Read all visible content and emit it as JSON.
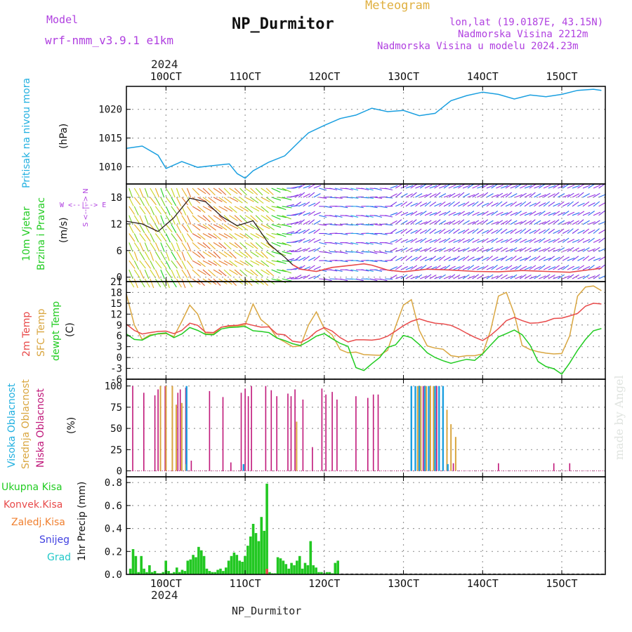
{
  "header": {
    "model_label": "Model",
    "model_value": "wrf-nmm_v3.9.1 e1km",
    "title": "NP_Durmitor",
    "subtitle": "Meteogram",
    "coords": "lon,lat (19.0187E, 43.15N)",
    "elevation": "Nadmorska Visina 2212m",
    "model_elevation": "Nadmorska Visina u modelu 2024.23m",
    "year_top": "2024",
    "year_bottom": "2024",
    "footer": "NP_Durmitor",
    "credit": "made by Angel"
  },
  "colors": {
    "pressure": "#1a9fe0",
    "temp2m": "#e84a4a",
    "sfc": "#d9a640",
    "dewpt": "#22cc22",
    "high_cloud": "#1a9fe0",
    "mid_cloud": "#d9a640",
    "low_cloud": "#c0187a",
    "precip": "#22c822",
    "wind_speed": "#e84a4a",
    "purple_text": "#b040e0",
    "cyan_text": "#22b0e0"
  },
  "chart_data": [
    {
      "type": "line",
      "name": "pressure",
      "ylabel_outer": "Pritisak na nivou mora",
      "ylabel_inner": "(hPa)",
      "yticks": [
        1010,
        1015,
        1020
      ],
      "ylim": [
        1007,
        1024
      ],
      "x_days": [
        9.5,
        9.7,
        9.9,
        10.0,
        10.2,
        10.4,
        10.6,
        10.8,
        10.9,
        11.0,
        11.1,
        11.3,
        11.5,
        11.7,
        11.8,
        12.0,
        12.2,
        12.4,
        12.6,
        12.8,
        13.0,
        13.2,
        13.4,
        13.6,
        13.8,
        14.0,
        14.2,
        14.4,
        14.6,
        14.8,
        15.0,
        15.2,
        15.4,
        15.5
      ],
      "values": [
        1013.2,
        1013.6,
        1012.0,
        1009.7,
        1010.9,
        1009.9,
        1010.2,
        1010.5,
        1008.8,
        1008.0,
        1009.3,
        1010.8,
        1011.9,
        1014.6,
        1015.9,
        1017.2,
        1018.4,
        1019.0,
        1020.2,
        1019.6,
        1019.8,
        1018.9,
        1019.3,
        1021.5,
        1022.4,
        1023.0,
        1022.6,
        1021.8,
        1022.5,
        1022.2,
        1022.6,
        1023.3,
        1023.5,
        1023.3
      ]
    },
    {
      "type": "line",
      "name": "wind",
      "ylabel_outer1": "10m Vjetar",
      "ylabel_outer2": "Brzina i Pravac",
      "ylabel_inner": "(m/s)",
      "compass": "W <--|--> E",
      "compass2": "S <--|--> N",
      "yticks": [
        0,
        6,
        12,
        18
      ],
      "ylim": [
        -1,
        21
      ],
      "x_days": [
        9.5,
        9.7,
        9.9,
        10.1,
        10.3,
        10.5,
        10.7,
        10.9,
        11.1,
        11.3,
        11.5,
        11.6,
        11.7,
        11.9,
        12.1,
        12.3,
        12.5,
        12.6,
        12.8,
        13.0,
        13.3,
        13.6,
        13.9,
        14.2,
        14.5,
        14.8,
        15.1,
        15.5
      ],
      "speed": [
        12.6,
        12.0,
        10.3,
        13.4,
        17.8,
        17.0,
        13.7,
        11.6,
        12.7,
        7.5,
        4.5,
        2.8,
        1.8,
        1.3,
        2.2,
        2.6,
        3.0,
        2.7,
        1.6,
        1.2,
        1.8,
        1.6,
        1.3,
        1.2,
        1.5,
        1.3,
        1.1,
        2.0
      ],
      "direction_bands": [
        "SW",
        "SW",
        "SW",
        "SW",
        "W",
        "W",
        "W",
        "W",
        "W",
        "NW",
        "N",
        "NE",
        "NE",
        "E",
        "E",
        "E",
        "E",
        "E",
        "NE",
        "NE",
        "NE",
        "NE",
        "NE",
        "NE",
        "NE",
        "NE",
        "NE",
        "NE"
      ]
    },
    {
      "type": "line",
      "name": "temperature",
      "ylabel_outer1": "2m Temp",
      "ylabel_outer2": "SFC Temp",
      "ylabel_outer3": "dewpt Temp",
      "ylabel_inner": "(C)",
      "yticks": [
        -6,
        -3,
        0,
        3,
        6,
        9,
        12,
        15,
        18,
        21
      ],
      "ylim": [
        -6,
        21
      ],
      "x_days": [
        9.5,
        9.6,
        9.7,
        9.8,
        9.9,
        10.0,
        10.1,
        10.2,
        10.3,
        10.4,
        10.5,
        10.6,
        10.7,
        10.8,
        10.9,
        11.0,
        11.1,
        11.2,
        11.3,
        11.4,
        11.5,
        11.6,
        11.7,
        11.8,
        11.9,
        12.0,
        12.1,
        12.2,
        12.3,
        12.4,
        12.5,
        12.6,
        12.7,
        12.8,
        12.9,
        13.0,
        13.1,
        13.2,
        13.3,
        13.4,
        13.5,
        13.6,
        13.7,
        13.8,
        13.9,
        14.0,
        14.1,
        14.2,
        14.3,
        14.4,
        14.5,
        14.6,
        14.7,
        14.8,
        14.9,
        15.0,
        15.1,
        15.2,
        15.3,
        15.4,
        15.5
      ],
      "t2m": [
        9.2,
        7.5,
        6.5,
        6.9,
        7.2,
        7.3,
        6.6,
        7.5,
        9.5,
        8.9,
        7.0,
        6.9,
        8.4,
        8.8,
        8.9,
        9.4,
        8.9,
        8.4,
        8.5,
        6.5,
        6.3,
        4.5,
        4.2,
        5.3,
        7.2,
        8.3,
        7.3,
        5.5,
        4.3,
        4.9,
        4.9,
        4.8,
        5.1,
        5.9,
        7.3,
        8.8,
        10.0,
        10.7,
        10.0,
        9.5,
        9.3,
        8.9,
        7.9,
        6.7,
        5.6,
        4.7,
        6.1,
        8.0,
        10.2,
        11.1,
        10.2,
        9.5,
        9.6,
        10.0,
        10.8,
        10.9,
        11.5,
        12.2,
        14.2,
        15.0,
        14.8
      ],
      "sfc": [
        17.5,
        9.0,
        5.0,
        6.3,
        6.5,
        6.6,
        5.8,
        10.0,
        14.5,
        12.0,
        6.6,
        6.5,
        8.4,
        8.6,
        8.7,
        9.0,
        14.8,
        10.5,
        8.7,
        5.5,
        4.3,
        3.0,
        3.2,
        9.0,
        12.6,
        8.0,
        6.2,
        2.2,
        1.3,
        1.5,
        0.8,
        0.7,
        0.6,
        2.0,
        8.6,
        14.5,
        16.0,
        7.5,
        3.2,
        2.6,
        2.3,
        0.5,
        0.2,
        0.5,
        0.5,
        1.0,
        7.4,
        17.0,
        18.0,
        12.0,
        3.3,
        2.2,
        1.6,
        1.2,
        1.0,
        1.1,
        6.0,
        17.0,
        19.5,
        19.8,
        18.5
      ],
      "dewpt": [
        6.5,
        5.0,
        4.8,
        6.0,
        6.6,
        6.8,
        5.5,
        6.5,
        8.3,
        7.5,
        6.4,
        6.3,
        7.9,
        8.3,
        8.4,
        8.6,
        7.4,
        7.2,
        6.9,
        5.4,
        4.7,
        3.8,
        3.3,
        4.5,
        5.9,
        6.6,
        5.2,
        3.9,
        3.1,
        -2.8,
        -3.6,
        -1.7,
        0.0,
        2.8,
        3.5,
        6.1,
        5.5,
        3.6,
        1.3,
        0.0,
        -0.9,
        -1.6,
        -1.0,
        -0.5,
        -0.8,
        1.0,
        3.4,
        5.7,
        6.6,
        7.6,
        6.3,
        3.4,
        -1.1,
        -2.5,
        -3.1,
        -4.6,
        -1.5,
        2.0,
        5.0,
        7.4,
        8.0
      ]
    },
    {
      "type": "bar",
      "name": "clouds",
      "ylabel_outer1": "Visoka Oblacnost",
      "ylabel_outer2": "Srednja Oblacnost",
      "ylabel_outer3": "Niska Oblacnost",
      "ylabel_inner": "(%)",
      "yticks": [
        0,
        25,
        50,
        75,
        100
      ],
      "ylim": [
        0,
        100
      ],
      "low": [
        [
          9.58,
          100
        ],
        [
          9.72,
          92
        ],
        [
          9.86,
          89
        ],
        [
          9.9,
          96
        ],
        [
          9.99,
          100
        ],
        [
          10.08,
          100
        ],
        [
          10.15,
          92
        ],
        [
          10.18,
          96
        ],
        [
          10.25,
          98
        ],
        [
          10.32,
          12
        ],
        [
          10.55,
          94
        ],
        [
          10.72,
          87
        ],
        [
          10.82,
          10
        ],
        [
          10.95,
          92
        ],
        [
          11.0,
          97
        ],
        [
          11.04,
          88
        ],
        [
          11.08,
          100
        ],
        [
          11.26,
          100
        ],
        [
          11.33,
          95
        ],
        [
          11.4,
          88
        ],
        [
          11.54,
          91
        ],
        [
          11.58,
          88
        ],
        [
          11.63,
          96
        ],
        [
          11.73,
          84
        ],
        [
          11.85,
          28
        ],
        [
          11.97,
          97
        ],
        [
          12.02,
          90
        ],
        [
          12.1,
          93
        ],
        [
          12.16,
          84
        ],
        [
          12.4,
          88
        ],
        [
          12.55,
          86
        ],
        [
          12.62,
          90
        ],
        [
          12.68,
          90
        ],
        [
          13.25,
          100
        ],
        [
          13.42,
          100
        ],
        [
          13.5,
          99
        ],
        [
          13.63,
          9
        ],
        [
          14.2,
          9
        ],
        [
          14.9,
          9
        ],
        [
          15.1,
          9
        ]
      ],
      "mid": [
        [
          9.93,
          100
        ],
        [
          10.0,
          100
        ],
        [
          10.08,
          100
        ],
        [
          10.13,
          78
        ],
        [
          10.2,
          80
        ],
        [
          10.25,
          8
        ],
        [
          11.65,
          58
        ],
        [
          13.1,
          100
        ],
        [
          13.18,
          100
        ],
        [
          13.22,
          100
        ],
        [
          13.29,
          100
        ],
        [
          13.34,
          100
        ],
        [
          13.38,
          100
        ],
        [
          13.45,
          85
        ],
        [
          13.5,
          90
        ],
        [
          13.55,
          72
        ],
        [
          13.6,
          55
        ],
        [
          13.66,
          40
        ]
      ],
      "high": [
        [
          10.26,
          100
        ],
        [
          10.98,
          8
        ],
        [
          13.1,
          100
        ],
        [
          13.15,
          100
        ],
        [
          13.2,
          100
        ],
        [
          13.27,
          100
        ],
        [
          13.32,
          100
        ],
        [
          13.4,
          100
        ],
        [
          13.45,
          100
        ],
        [
          13.5,
          100
        ],
        [
          13.56,
          8
        ]
      ]
    },
    {
      "type": "bar",
      "name": "precip",
      "legend": [
        "Ukupna Kisa",
        "Konvek.Kisa",
        "Zaledj.Kisa",
        "Snijeg",
        "Grad"
      ],
      "ylabel_inner": "1hr Precip (mm)",
      "yticks": [
        0.0,
        0.2,
        0.4,
        0.6,
        0.8
      ],
      "ylim": [
        0,
        0.85
      ],
      "x_start": 9.55,
      "x_step": 0.0345,
      "values": [
        0.05,
        0.22,
        0.16,
        0.02,
        0.16,
        0.05,
        0.02,
        0.08,
        0.02,
        0.03,
        0.01,
        0.01,
        0.02,
        0.12,
        0.03,
        0.01,
        0.02,
        0.06,
        0.02,
        0.04,
        0.03,
        0.12,
        0.13,
        0.17,
        0.15,
        0.24,
        0.21,
        0.16,
        0.05,
        0.03,
        0.02,
        0.02,
        0.04,
        0.05,
        0.03,
        0.06,
        0.12,
        0.16,
        0.19,
        0.17,
        0.12,
        0.11,
        0.16,
        0.25,
        0.33,
        0.44,
        0.36,
        0.29,
        0.5,
        0.38,
        0.79,
        0.02,
        0.01,
        0.01,
        0.15,
        0.14,
        0.12,
        0.09,
        0.05,
        0.1,
        0.08,
        0.12,
        0.16,
        0.05,
        0.1,
        0.08,
        0.29,
        0.08,
        0.06,
        0.02,
        0.02,
        0.01,
        0.02,
        0.02,
        0.01,
        0.1,
        0.12
      ]
    }
  ],
  "x_axis": {
    "xlim": [
      9.5,
      15.55
    ],
    "tick_days": [
      10,
      11,
      12,
      13,
      14,
      15
    ],
    "tick_labels": [
      "10OCT",
      "11OCT",
      "12OCT",
      "13OCT",
      "14OCT",
      "15OCT"
    ]
  }
}
